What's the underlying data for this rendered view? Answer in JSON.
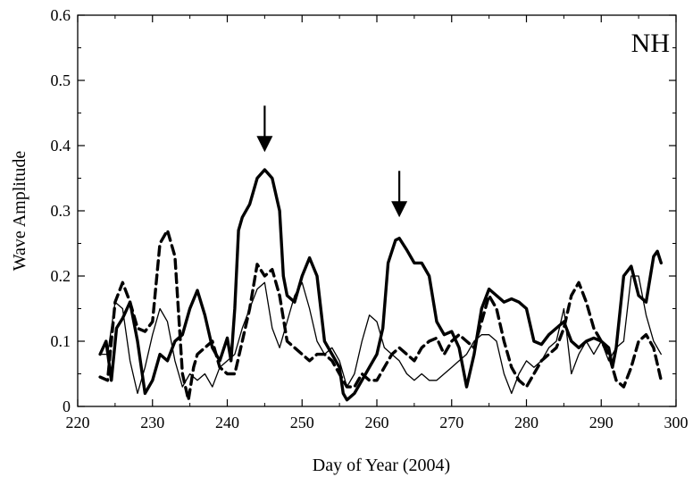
{
  "chart_data": {
    "type": "line",
    "panel_label": "NH",
    "xlabel": "Day of Year  (2004)",
    "ylabel": "Wave Amplitude",
    "xlim": [
      220,
      300
    ],
    "ylim": [
      0,
      0.6
    ],
    "x_ticks": [
      220,
      230,
      240,
      250,
      260,
      270,
      280,
      290,
      300
    ],
    "y_ticks": [
      0,
      0.1,
      0.2,
      0.3,
      0.4,
      0.5,
      0.6
    ],
    "x_tick_labels": [
      "220",
      "230",
      "240",
      "250",
      "260",
      "270",
      "280",
      "290",
      "300"
    ],
    "y_tick_labels": [
      "0",
      "0.1",
      "0.2",
      "0.3",
      "0.4",
      "0.5",
      "0.6"
    ],
    "grid": false,
    "annotations": [
      {
        "type": "arrow",
        "x": 245,
        "y": 0.39
      },
      {
        "type": "arrow",
        "x": 263,
        "y": 0.29
      }
    ],
    "series": [
      {
        "style": "thick",
        "color": "#000000",
        "points": [
          [
            223,
            0.08
          ],
          [
            223.8,
            0.1
          ],
          [
            224.5,
            0.04
          ],
          [
            225.2,
            0.12
          ],
          [
            226,
            0.135
          ],
          [
            227,
            0.16
          ],
          [
            228,
            0.1
          ],
          [
            229,
            0.02
          ],
          [
            230,
            0.04
          ],
          [
            231,
            0.08
          ],
          [
            232,
            0.07
          ],
          [
            233,
            0.1
          ],
          [
            234,
            0.11
          ],
          [
            235,
            0.15
          ],
          [
            236,
            0.178
          ],
          [
            237,
            0.14
          ],
          [
            238,
            0.09
          ],
          [
            239,
            0.07
          ],
          [
            240,
            0.105
          ],
          [
            240.5,
            0.07
          ],
          [
            241,
            0.15
          ],
          [
            241.5,
            0.27
          ],
          [
            242,
            0.29
          ],
          [
            243,
            0.31
          ],
          [
            244,
            0.35
          ],
          [
            245,
            0.363
          ],
          [
            246,
            0.35
          ],
          [
            247,
            0.3
          ],
          [
            247.5,
            0.2
          ],
          [
            248,
            0.17
          ],
          [
            249,
            0.16
          ],
          [
            250,
            0.2
          ],
          [
            251,
            0.228
          ],
          [
            252,
            0.2
          ],
          [
            253,
            0.1
          ],
          [
            254,
            0.08
          ],
          [
            255,
            0.06
          ],
          [
            255.5,
            0.02
          ],
          [
            256,
            0.01
          ],
          [
            257,
            0.02
          ],
          [
            258,
            0.04
          ],
          [
            259,
            0.06
          ],
          [
            260,
            0.08
          ],
          [
            260.8,
            0.12
          ],
          [
            261.5,
            0.22
          ],
          [
            262.5,
            0.255
          ],
          [
            263,
            0.258
          ],
          [
            264,
            0.24
          ],
          [
            265,
            0.22
          ],
          [
            266,
            0.22
          ],
          [
            267,
            0.2
          ],
          [
            268,
            0.13
          ],
          [
            269,
            0.11
          ],
          [
            270,
            0.115
          ],
          [
            271,
            0.09
          ],
          [
            272,
            0.03
          ],
          [
            273,
            0.08
          ],
          [
            274,
            0.15
          ],
          [
            275,
            0.18
          ],
          [
            276,
            0.17
          ],
          [
            277,
            0.16
          ],
          [
            278,
            0.165
          ],
          [
            279,
            0.16
          ],
          [
            280,
            0.15
          ],
          [
            281,
            0.1
          ],
          [
            282,
            0.095
          ],
          [
            283,
            0.11
          ],
          [
            284,
            0.12
          ],
          [
            285,
            0.13
          ],
          [
            286,
            0.1
          ],
          [
            287,
            0.09
          ],
          [
            288,
            0.1
          ],
          [
            289,
            0.105
          ],
          [
            290,
            0.1
          ],
          [
            291,
            0.09
          ],
          [
            291.5,
            0.06
          ],
          [
            292,
            0.09
          ],
          [
            293,
            0.2
          ],
          [
            294,
            0.215
          ],
          [
            295,
            0.17
          ],
          [
            296,
            0.16
          ],
          [
            297,
            0.23
          ],
          [
            297.5,
            0.238
          ],
          [
            298,
            0.22
          ]
        ]
      },
      {
        "style": "dashed",
        "color": "#000000",
        "points": [
          [
            223,
            0.045
          ],
          [
            224,
            0.04
          ],
          [
            225,
            0.16
          ],
          [
            226,
            0.19
          ],
          [
            227,
            0.16
          ],
          [
            228,
            0.12
          ],
          [
            229,
            0.115
          ],
          [
            230,
            0.13
          ],
          [
            231,
            0.25
          ],
          [
            232,
            0.27
          ],
          [
            233,
            0.23
          ],
          [
            234,
            0.05
          ],
          [
            234.8,
            0.01
          ],
          [
            235.5,
            0.06
          ],
          [
            236,
            0.08
          ],
          [
            237,
            0.09
          ],
          [
            238,
            0.1
          ],
          [
            239,
            0.06
          ],
          [
            240,
            0.05
          ],
          [
            241,
            0.05
          ],
          [
            242,
            0.1
          ],
          [
            243,
            0.15
          ],
          [
            244,
            0.218
          ],
          [
            245,
            0.2
          ],
          [
            246,
            0.21
          ],
          [
            247,
            0.17
          ],
          [
            248,
            0.1
          ],
          [
            249,
            0.09
          ],
          [
            250,
            0.08
          ],
          [
            251,
            0.07
          ],
          [
            252,
            0.08
          ],
          [
            253,
            0.08
          ],
          [
            254,
            0.07
          ],
          [
            255,
            0.05
          ],
          [
            256,
            0.03
          ],
          [
            257,
            0.03
          ],
          [
            258,
            0.05
          ],
          [
            259,
            0.04
          ],
          [
            260,
            0.04
          ],
          [
            261,
            0.06
          ],
          [
            262,
            0.08
          ],
          [
            263,
            0.09
          ],
          [
            264,
            0.08
          ],
          [
            265,
            0.07
          ],
          [
            266,
            0.09
          ],
          [
            267,
            0.1
          ],
          [
            268,
            0.105
          ],
          [
            269,
            0.08
          ],
          [
            270,
            0.1
          ],
          [
            271,
            0.11
          ],
          [
            272,
            0.1
          ],
          [
            273,
            0.09
          ],
          [
            274,
            0.13
          ],
          [
            275,
            0.17
          ],
          [
            276,
            0.15
          ],
          [
            277,
            0.1
          ],
          [
            278,
            0.06
          ],
          [
            279,
            0.04
          ],
          [
            280,
            0.03
          ],
          [
            281,
            0.05
          ],
          [
            282,
            0.07
          ],
          [
            283,
            0.08
          ],
          [
            284,
            0.09
          ],
          [
            285,
            0.12
          ],
          [
            286,
            0.17
          ],
          [
            287,
            0.19
          ],
          [
            288,
            0.16
          ],
          [
            289,
            0.12
          ],
          [
            290,
            0.1
          ],
          [
            291,
            0.08
          ],
          [
            292,
            0.04
          ],
          [
            293,
            0.03
          ],
          [
            294,
            0.06
          ],
          [
            295,
            0.1
          ],
          [
            296,
            0.11
          ],
          [
            297,
            0.09
          ],
          [
            298,
            0.04
          ]
        ]
      },
      {
        "style": "thin",
        "color": "#000000",
        "points": [
          [
            223,
            0.08
          ],
          [
            224,
            0.08
          ],
          [
            225,
            0.16
          ],
          [
            226,
            0.15
          ],
          [
            227,
            0.07
          ],
          [
            228,
            0.02
          ],
          [
            229,
            0.06
          ],
          [
            230,
            0.11
          ],
          [
            231,
            0.15
          ],
          [
            232,
            0.13
          ],
          [
            233,
            0.07
          ],
          [
            234,
            0.03
          ],
          [
            235,
            0.05
          ],
          [
            236,
            0.04
          ],
          [
            237,
            0.05
          ],
          [
            238,
            0.03
          ],
          [
            239,
            0.06
          ],
          [
            240,
            0.07
          ],
          [
            241,
            0.08
          ],
          [
            242,
            0.12
          ],
          [
            243,
            0.15
          ],
          [
            244,
            0.18
          ],
          [
            245,
            0.19
          ],
          [
            246,
            0.12
          ],
          [
            247,
            0.09
          ],
          [
            248,
            0.13
          ],
          [
            249,
            0.17
          ],
          [
            250,
            0.19
          ],
          [
            251,
            0.15
          ],
          [
            252,
            0.1
          ],
          [
            253,
            0.08
          ],
          [
            254,
            0.09
          ],
          [
            255,
            0.07
          ],
          [
            256,
            0.03
          ],
          [
            257,
            0.05
          ],
          [
            258,
            0.1
          ],
          [
            259,
            0.14
          ],
          [
            260,
            0.13
          ],
          [
            261,
            0.09
          ],
          [
            262,
            0.08
          ],
          [
            263,
            0.07
          ],
          [
            264,
            0.05
          ],
          [
            265,
            0.04
          ],
          [
            266,
            0.05
          ],
          [
            267,
            0.04
          ],
          [
            268,
            0.04
          ],
          [
            269,
            0.05
          ],
          [
            270,
            0.06
          ],
          [
            271,
            0.07
          ],
          [
            272,
            0.08
          ],
          [
            273,
            0.1
          ],
          [
            274,
            0.11
          ],
          [
            275,
            0.11
          ],
          [
            276,
            0.1
          ],
          [
            277,
            0.05
          ],
          [
            278,
            0.02
          ],
          [
            279,
            0.05
          ],
          [
            280,
            0.07
          ],
          [
            281,
            0.06
          ],
          [
            282,
            0.07
          ],
          [
            283,
            0.09
          ],
          [
            284,
            0.1
          ],
          [
            285,
            0.15
          ],
          [
            286,
            0.05
          ],
          [
            287,
            0.08
          ],
          [
            288,
            0.1
          ],
          [
            289,
            0.08
          ],
          [
            290,
            0.1
          ],
          [
            291,
            0.07
          ],
          [
            292,
            0.09
          ],
          [
            293,
            0.1
          ],
          [
            294,
            0.2
          ],
          [
            295,
            0.2
          ],
          [
            296,
            0.14
          ],
          [
            297,
            0.1
          ],
          [
            298,
            0.08
          ]
        ]
      }
    ]
  }
}
